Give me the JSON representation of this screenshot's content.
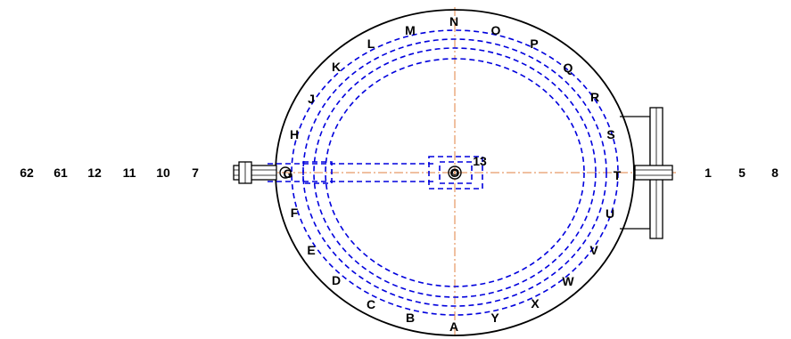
{
  "diagram": {
    "perimeter_labels": [
      "N",
      "O",
      "P",
      "Q",
      "R",
      "S",
      "T",
      "U",
      "V",
      "W",
      "X",
      "Y",
      "A",
      "B",
      "C",
      "D",
      "E",
      "F",
      "G",
      "H",
      "J",
      "K",
      "L",
      "M"
    ],
    "center_label": "O",
    "inner_label": "13",
    "left_numbers": [
      "62",
      "61",
      "12",
      "11",
      "10",
      "7"
    ],
    "right_numbers": [
      "1",
      "5",
      "8"
    ],
    "colors": {
      "outline": "#000000",
      "hidden_lines": "#0000dd",
      "center_lines": "#e08040"
    },
    "line_styles": {
      "hidden_lines": "dashed",
      "center_lines": "dash-dot"
    }
  }
}
